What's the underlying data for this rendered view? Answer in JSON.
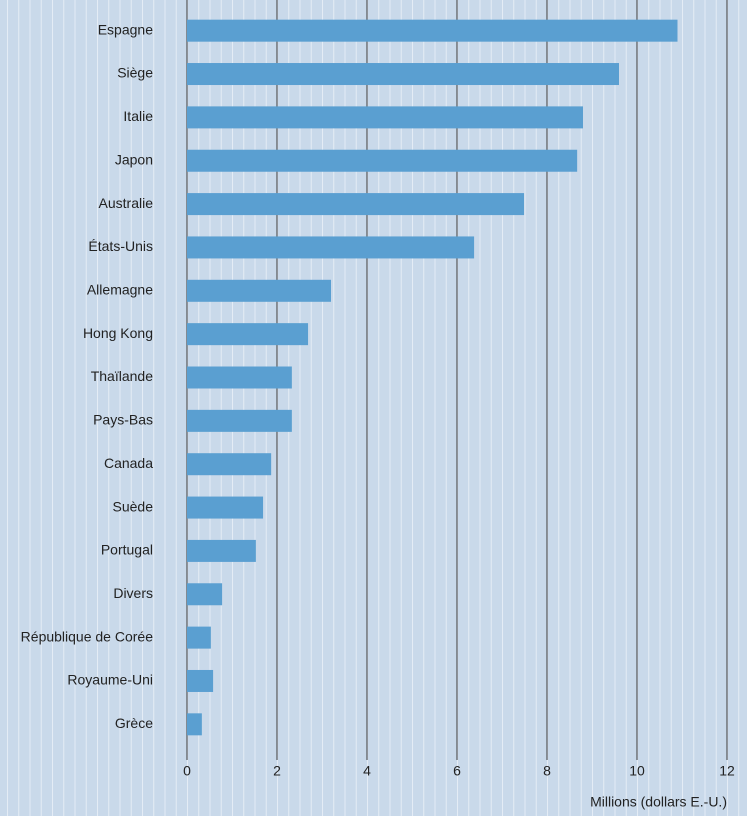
{
  "chart_data": {
    "type": "bar",
    "orientation": "horizontal",
    "categories": [
      "Espagne",
      "Siège",
      "Italie",
      "Japon",
      "Australie",
      "États-Unis",
      "Allemagne",
      "Hong Kong",
      "Thaïlande",
      "Pays-Bas",
      "Canada",
      "Suède",
      "Portugal",
      "Divers",
      "République de Corée",
      "Royaume-Uni",
      "Grèce"
    ],
    "values": [
      10.9,
      9.6,
      8.8,
      8.67,
      7.49,
      6.38,
      3.2,
      2.69,
      2.33,
      2.33,
      1.87,
      1.69,
      1.53,
      0.78,
      0.53,
      0.58,
      0.33
    ],
    "color": "#5a9fd1",
    "xlim": [
      0,
      12
    ],
    "xticks": [
      0,
      2,
      4,
      6,
      8,
      10,
      12
    ],
    "x_label": "Millions (dollars E.-U.)",
    "grid": true
  }
}
